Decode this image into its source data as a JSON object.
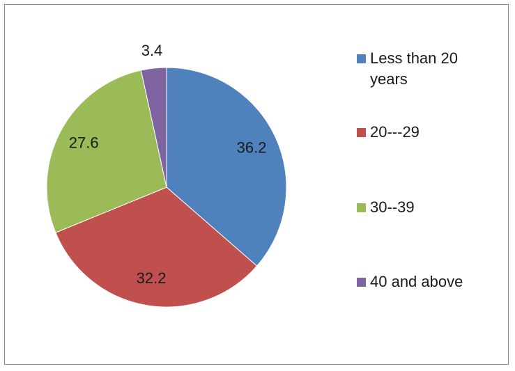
{
  "chart_data": {
    "type": "pie",
    "slices": [
      {
        "label": "Less than 20 years",
        "value": 36.2,
        "value_label": "36.2",
        "color": "#4F81BD"
      },
      {
        "label": "20---29",
        "value": 32.2,
        "value_label": "32.2",
        "color": "#C0504D"
      },
      {
        "label": "30--39",
        "value": 27.6,
        "value_label": "27.6",
        "color": "#9BBB59"
      },
      {
        "label": "40 and above",
        "value": 3.4,
        "value_label": "3.4",
        "color": "#8064A2"
      }
    ],
    "start_angle": "12 o'clock",
    "direction": "clockwise",
    "legend_position": "right"
  }
}
